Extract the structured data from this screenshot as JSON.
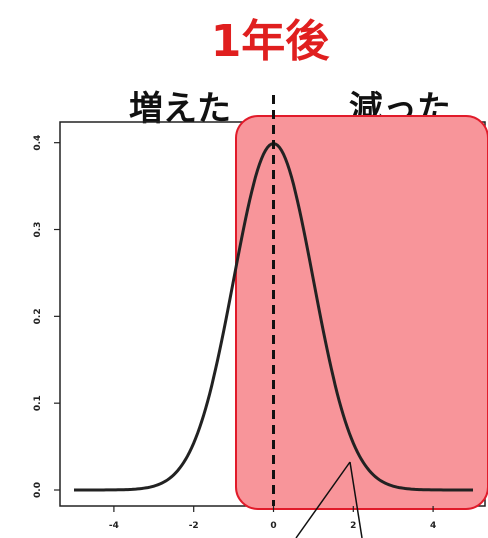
{
  "title": "1年後",
  "left_label": "増えた",
  "right_label": "減った",
  "colors": {
    "title": "#e01f1f",
    "highlight_fill": "#f8959a",
    "highlight_stroke": "#e11b2a",
    "curve": "#222222"
  },
  "chart_data": {
    "type": "line",
    "series": [
      {
        "x": [
          -5.0,
          -4.5,
          -4.0,
          -3.5,
          -3.0,
          -2.5,
          -2.0,
          -1.5,
          -1.0,
          -0.5,
          0.0,
          0.5,
          1.0,
          1.5,
          2.0,
          2.5,
          3.0,
          3.5,
          4.0,
          4.5,
          5.0
        ],
        "values": [
          0.0,
          0.0,
          0.0,
          0.001,
          0.004,
          0.018,
          0.054,
          0.13,
          0.242,
          0.352,
          0.399,
          0.352,
          0.242,
          0.13,
          0.054,
          0.018,
          0.004,
          0.001,
          0.0,
          0.0,
          0.0
        ]
      }
    ],
    "xlim": [
      -5,
      5
    ],
    "ylim": [
      0,
      0.41
    ],
    "xticks": [
      -4,
      -2,
      0,
      2,
      4
    ],
    "yticks": [
      0.0,
      0.1,
      0.2,
      0.3,
      0.4
    ],
    "xtick_labels": [
      "-4",
      "-2",
      "0",
      "2",
      "4"
    ],
    "ytick_labels": [
      "0.0",
      "0.1",
      "0.2",
      "0.3",
      "0.4"
    ],
    "vline_x": 0,
    "highlight_region": "x >= 0"
  }
}
